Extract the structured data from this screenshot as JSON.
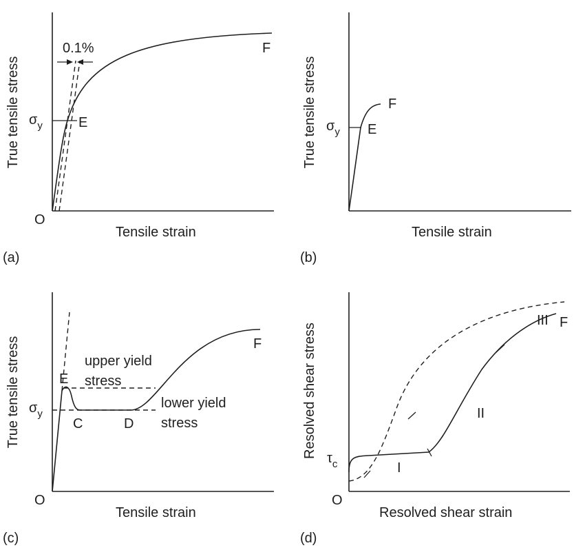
{
  "panels": {
    "a": {
      "tag": "(a)",
      "ylabel": "True tensile stress",
      "xlabel": "Tensile strain",
      "origin": "O",
      "offset": "0.1%",
      "sigma": "σ",
      "sigma_sub": "y",
      "point_e": "E",
      "point_f": "F"
    },
    "b": {
      "tag": "(b)",
      "ylabel": "True tensile stress",
      "xlabel": "Tensile strain",
      "sigma": "σ",
      "sigma_sub": "y",
      "point_e": "E",
      "point_f": "F"
    },
    "c": {
      "tag": "(c)",
      "ylabel": "True tensile stress",
      "xlabel": "Tensile strain",
      "origin": "O",
      "sigma": "σ",
      "sigma_sub": "y",
      "point_e": "E",
      "point_c": "C",
      "point_d": "D",
      "point_f": "F",
      "upper_1": "upper yield",
      "upper_2": "stress",
      "lower_1": "lower yield",
      "lower_2": "stress"
    },
    "d": {
      "tag": "(d)",
      "ylabel": "Resolved shear stress",
      "xlabel": "Resolved shear strain",
      "origin": "O",
      "tau": "τ",
      "tau_sub": "c",
      "stage_1": "I",
      "stage_2": "II",
      "stage_3": "III",
      "point_f": "F"
    }
  }
}
